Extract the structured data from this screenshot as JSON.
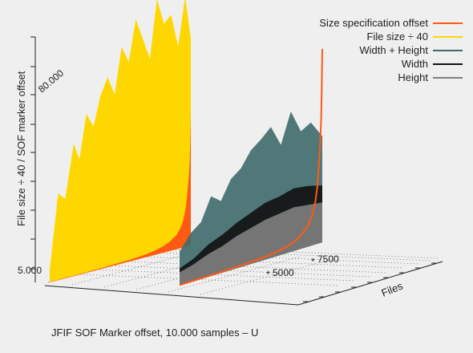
{
  "chart_data": {
    "type": "area",
    "title": "",
    "caption": "JFIF SOF Marker offset, 10.000 samples – U",
    "ylabel": "File size ÷ 40 / SOF marker offset",
    "zlabel": "Files",
    "y_ticks": [
      "5.000",
      "80.000"
    ],
    "file_ticks": [
      "5000",
      "7500"
    ],
    "ylim": [
      0,
      110000
    ],
    "grid": true,
    "legend_position": "top-right",
    "samples": 10000,
    "series": [
      {
        "name": "Size specification offset",
        "color": "#ff5a14",
        "sorted": true,
        "points": [
          [
            0,
            300
          ],
          [
            500,
            320
          ],
          [
            1000,
            340
          ],
          [
            1500,
            380
          ],
          [
            2000,
            420
          ],
          [
            2500,
            480
          ],
          [
            3000,
            560
          ],
          [
            3500,
            640
          ],
          [
            4000,
            760
          ],
          [
            4500,
            900
          ],
          [
            5000,
            1050
          ],
          [
            5500,
            1250
          ],
          [
            6000,
            1500
          ],
          [
            6500,
            1900
          ],
          [
            7000,
            2500
          ],
          [
            7500,
            3400
          ],
          [
            8000,
            4800
          ],
          [
            8500,
            7000
          ],
          [
            9000,
            11000
          ],
          [
            9300,
            16000
          ],
          [
            9500,
            22000
          ],
          [
            9650,
            30000
          ],
          [
            9750,
            40000
          ],
          [
            9850,
            52000
          ],
          [
            9920,
            65000
          ],
          [
            9960,
            80000
          ],
          [
            9990,
            95000
          ],
          [
            10000,
            102000
          ]
        ]
      },
      {
        "name": "File size ÷ 40",
        "color": "#ffd700",
        "points": [
          [
            0,
            5200
          ],
          [
            600,
            36000
          ],
          [
            1100,
            33000
          ],
          [
            1700,
            55000
          ],
          [
            2100,
            48000
          ],
          [
            2600,
            66000
          ],
          [
            3100,
            60000
          ],
          [
            3600,
            72000
          ],
          [
            4100,
            79000
          ],
          [
            4600,
            71000
          ],
          [
            5100,
            90000
          ],
          [
            5600,
            83000
          ],
          [
            6100,
            100000
          ],
          [
            6600,
            91000
          ],
          [
            7100,
            82000
          ],
          [
            7600,
            106000
          ],
          [
            8100,
            95000
          ],
          [
            8600,
            98000
          ],
          [
            9100,
            84000
          ],
          [
            9600,
            104000
          ],
          [
            10000,
            86000
          ]
        ]
      },
      {
        "name": "Width + Height",
        "color": "#3f6a6a",
        "points": [
          [
            0,
            1800
          ],
          [
            800,
            2600
          ],
          [
            1500,
            3000
          ],
          [
            2200,
            4200
          ],
          [
            2900,
            3800
          ],
          [
            3600,
            4800
          ],
          [
            4300,
            5200
          ],
          [
            5000,
            6000
          ],
          [
            5700,
            6400
          ],
          [
            6400,
            6900
          ],
          [
            7100,
            5800
          ],
          [
            7800,
            7400
          ],
          [
            8500,
            6200
          ],
          [
            9200,
            6500
          ],
          [
            10000,
            5600
          ]
        ]
      },
      {
        "name": "Width",
        "color": "#111111",
        "points": [
          [
            0,
            900
          ],
          [
            1000,
            1200
          ],
          [
            2000,
            1700
          ],
          [
            3000,
            2000
          ],
          [
            4000,
            2400
          ],
          [
            5000,
            2700
          ],
          [
            6000,
            3000
          ],
          [
            7000,
            3100
          ],
          [
            8000,
            3300
          ],
          [
            9000,
            3200
          ],
          [
            10000,
            3000
          ]
        ]
      },
      {
        "name": "Height",
        "color": "#7f7f7f",
        "points": [
          [
            0,
            700
          ],
          [
            1000,
            900
          ],
          [
            2000,
            1200
          ],
          [
            3000,
            1400
          ],
          [
            4000,
            1700
          ],
          [
            5000,
            1900
          ],
          [
            6000,
            2100
          ],
          [
            7000,
            2200
          ],
          [
            8000,
            2300
          ],
          [
            9000,
            2200
          ],
          [
            10000,
            2100
          ]
        ]
      }
    ]
  }
}
